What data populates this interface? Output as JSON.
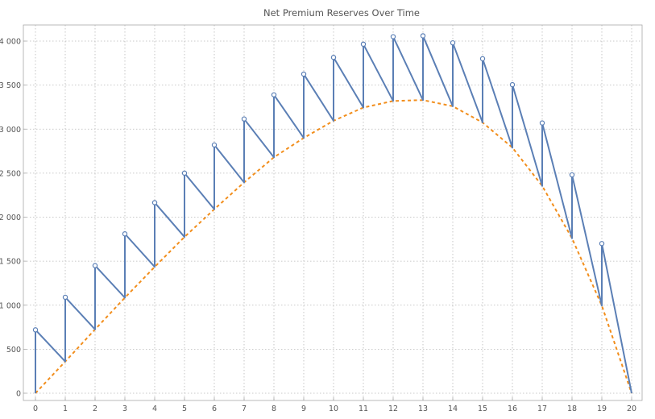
{
  "chart_data": {
    "type": "line",
    "title": "Net Premium Reserves Over Time",
    "xlabel": "",
    "ylabel": "",
    "xlim": [
      0,
      20
    ],
    "ylim": [
      0,
      4200
    ],
    "x_ticks": [
      0,
      1,
      2,
      3,
      4,
      5,
      6,
      7,
      8,
      9,
      10,
      11,
      12,
      13,
      14,
      15,
      16,
      17,
      18,
      19,
      20
    ],
    "y_ticks": [
      0,
      500,
      1000,
      1500,
      2000,
      2500,
      3000,
      3500,
      4000
    ],
    "y_tick_labels": [
      "0",
      "500",
      "1 000",
      "1 500",
      "2 000",
      "2 500",
      "3 000",
      "3 500",
      "4 000"
    ],
    "grid": true,
    "series": [
      {
        "color": "#5b7fb5",
        "style": "solid",
        "markers": "open-circle-at-year-start",
        "segments": [
          {
            "x0": 0,
            "start": 720,
            "end": 360
          },
          {
            "x0": 1,
            "start": 1090,
            "end": 725
          },
          {
            "x0": 2,
            "start": 1450,
            "end": 1085
          },
          {
            "x0": 3,
            "start": 1810,
            "end": 1435
          },
          {
            "x0": 4,
            "start": 2165,
            "end": 1775
          },
          {
            "x0": 5,
            "start": 2500,
            "end": 2090
          },
          {
            "x0": 6,
            "start": 2820,
            "end": 2395
          },
          {
            "x0": 7,
            "start": 3115,
            "end": 2680
          },
          {
            "x0": 8,
            "start": 3390,
            "end": 2900
          },
          {
            "x0": 9,
            "start": 3625,
            "end": 3095
          },
          {
            "x0": 10,
            "start": 3815,
            "end": 3245
          },
          {
            "x0": 11,
            "start": 3965,
            "end": 3320
          },
          {
            "x0": 12,
            "start": 4050,
            "end": 3330
          },
          {
            "x0": 13,
            "start": 4060,
            "end": 3260
          },
          {
            "x0": 14,
            "start": 3980,
            "end": 3075
          },
          {
            "x0": 15,
            "start": 3800,
            "end": 2790
          },
          {
            "x0": 16,
            "start": 3505,
            "end": 2355
          },
          {
            "x0": 17,
            "start": 3070,
            "end": 1760
          },
          {
            "x0": 18,
            "start": 2480,
            "end": 995
          },
          {
            "x0": 19,
            "start": 1700,
            "end": 0
          }
        ]
      },
      {
        "color": "#f28e1c",
        "style": "dashed",
        "x": [
          0,
          1,
          2,
          3,
          4,
          5,
          6,
          7,
          8,
          9,
          10,
          11,
          12,
          13,
          14,
          15,
          16,
          17,
          18,
          19,
          20
        ],
        "y": [
          0,
          360,
          725,
          1085,
          1435,
          1775,
          2090,
          2395,
          2680,
          2900,
          3095,
          3245,
          3320,
          3330,
          3260,
          3075,
          2790,
          2355,
          1760,
          995,
          0
        ]
      }
    ]
  }
}
